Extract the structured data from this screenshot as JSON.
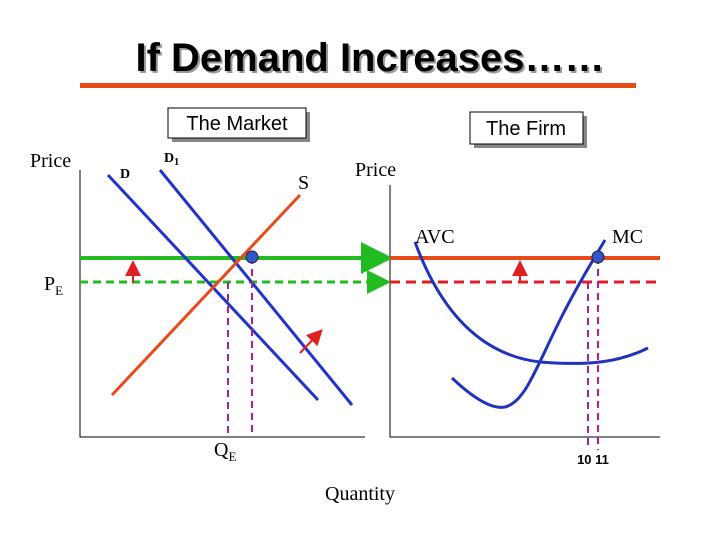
{
  "title": "If Demand Increases……",
  "market": {
    "heading": "The Market",
    "y_label": "Price",
    "demand": "D",
    "demand_new": {
      "text": "D",
      "sub": "1"
    },
    "supply": "S",
    "price_label": {
      "text": "P",
      "sub": "E"
    },
    "quantity_label": {
      "text": "Q",
      "sub": "E"
    }
  },
  "firm": {
    "heading": "The Firm",
    "y_label": "Price",
    "avc": "AVC",
    "mc": "MC",
    "quantities": "10 11"
  },
  "x_label": "Quantity"
}
